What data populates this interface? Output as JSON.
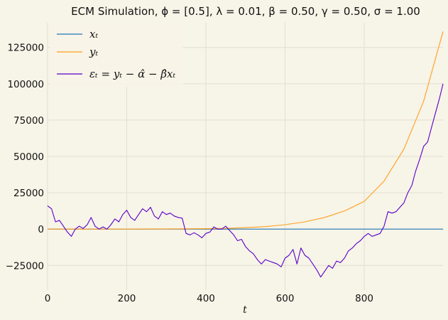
{
  "chart_data": {
    "type": "line",
    "title": "ECM Simulation, ϕ = [0.5], λ = 0.01, β = 0.50, γ = 0.50, σ = 1.00",
    "xlabel": "t",
    "ylabel": "",
    "xlim": [
      0,
      999
    ],
    "ylim": [
      -42000,
      142000
    ],
    "xticks": [
      0,
      200,
      400,
      600,
      800
    ],
    "yticks": [
      -25000,
      0,
      25000,
      50000,
      75000,
      100000,
      125000
    ],
    "ytick_labels": [
      "−25000",
      "0",
      "25000",
      "50000",
      "75000",
      "100000",
      "125000"
    ],
    "grid": true,
    "legend_position": "top-left",
    "colors": {
      "x": "#1f77b4",
      "y": "#ff9f1c",
      "eps": "#5a00c8",
      "background": "#f7f4e8"
    },
    "series": [
      {
        "name": "x_t",
        "legend_label": "xₜ",
        "color": "#1f77b4",
        "x": [
          0,
          999
        ],
        "values": [
          0,
          0
        ]
      },
      {
        "name": "y_t",
        "legend_label": "yₜ",
        "color": "#ff9f1c",
        "x": [
          0,
          100,
          200,
          300,
          400,
          450,
          500,
          550,
          600,
          650,
          700,
          750,
          800,
          850,
          900,
          950,
          999
        ],
        "values": [
          0,
          10,
          50,
          150,
          300,
          500,
          1000,
          1700,
          3000,
          5000,
          8000,
          12500,
          19000,
          33000,
          55000,
          88000,
          136000
        ]
      },
      {
        "name": "eps_t",
        "legend_label": "εₜ = yₜ − α̂ − β̂xₜ",
        "color": "#5a00c8",
        "x": [
          0,
          10,
          20,
          30,
          40,
          50,
          60,
          70,
          80,
          90,
          100,
          110,
          120,
          130,
          140,
          150,
          160,
          170,
          180,
          190,
          200,
          210,
          220,
          230,
          240,
          250,
          260,
          270,
          280,
          290,
          300,
          310,
          320,
          330,
          340,
          350,
          360,
          370,
          380,
          390,
          400,
          410,
          420,
          430,
          440,
          450,
          460,
          470,
          480,
          490,
          500,
          510,
          520,
          530,
          540,
          550,
          560,
          570,
          580,
          590,
          600,
          610,
          620,
          630,
          640,
          650,
          660,
          670,
          680,
          690,
          700,
          710,
          720,
          730,
          740,
          750,
          760,
          770,
          780,
          790,
          800,
          810,
          820,
          830,
          840,
          850,
          860,
          870,
          880,
          890,
          900,
          910,
          920,
          930,
          940,
          950,
          960,
          970,
          980,
          990,
          999
        ],
        "values": [
          16000,
          14000,
          5000,
          6000,
          2000,
          -2000,
          -5000,
          0,
          2000,
          500,
          3000,
          8000,
          2000,
          0,
          1500,
          0,
          3000,
          7000,
          5000,
          10000,
          13000,
          8000,
          6000,
          10000,
          14000,
          12000,
          15000,
          9000,
          7000,
          12000,
          10000,
          11000,
          9000,
          8000,
          7500,
          -3000,
          -4000,
          -2500,
          -4000,
          -6000,
          -3000,
          -2000,
          1500,
          0,
          0,
          2000,
          -1000,
          -4000,
          -8000,
          -7000,
          -12000,
          -15000,
          -17000,
          -21000,
          -24000,
          -21000,
          -22000,
          -23000,
          -24000,
          -26000,
          -20000,
          -18000,
          -14000,
          -24000,
          -13000,
          -18000,
          -20000,
          -24000,
          -28000,
          -33000,
          -29000,
          -25000,
          -27000,
          -22000,
          -23000,
          -20000,
          -15000,
          -13000,
          -10000,
          -8000,
          -5000,
          -3000,
          -5000,
          -4000,
          -3000,
          2000,
          12000,
          11000,
          12000,
          15000,
          18000,
          25000,
          30000,
          40000,
          48000,
          57000,
          60000,
          70000,
          80000,
          90000,
          100000
        ]
      }
    ]
  }
}
